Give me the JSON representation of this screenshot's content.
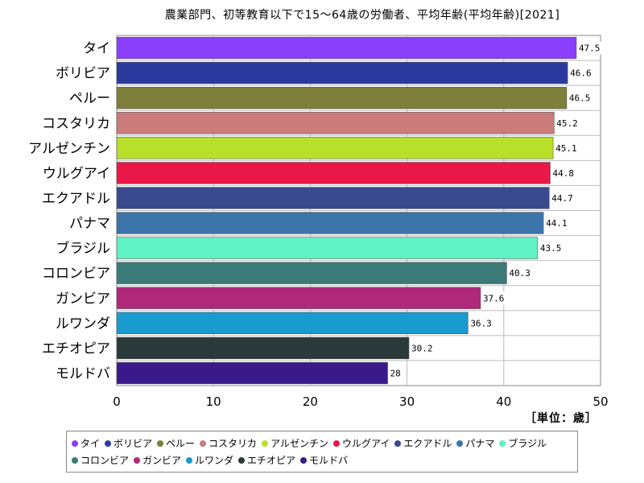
{
  "chart_data": {
    "type": "bar",
    "orientation": "horizontal",
    "title": "農業部門、初等教育以下で15～64歳の労働者、平均年齢(平均年齢)[2021]",
    "unit_label": "［単位：歳］",
    "xlim": [
      0,
      50
    ],
    "x_ticks": [
      0,
      10,
      20,
      30,
      40,
      50
    ],
    "grid": true,
    "legend_position": "bottom",
    "categories": [
      "タイ",
      "ボリビア",
      "ペルー",
      "コスタリカ",
      "アルゼンチン",
      "ウルグアイ",
      "エクアドル",
      "パナマ",
      "ブラジル",
      "コロンビア",
      "ガンビア",
      "ルワンダ",
      "エチオピア",
      "モルドバ"
    ],
    "values": [
      47.5,
      46.6,
      46.5,
      45.2,
      45.1,
      44.8,
      44.7,
      44.1,
      43.5,
      40.3,
      37.6,
      36.3,
      30.2,
      28
    ],
    "colors": [
      "#8a3ffc",
      "#2a3a9e",
      "#7d7f3a",
      "#cc7b7b",
      "#b8e02a",
      "#ea1848",
      "#3a4a8e",
      "#3b74a8",
      "#5ff2c4",
      "#3a7a78",
      "#b0287a",
      "#1a9bd0",
      "#2a3a3a",
      "#3a1a8a"
    ]
  }
}
